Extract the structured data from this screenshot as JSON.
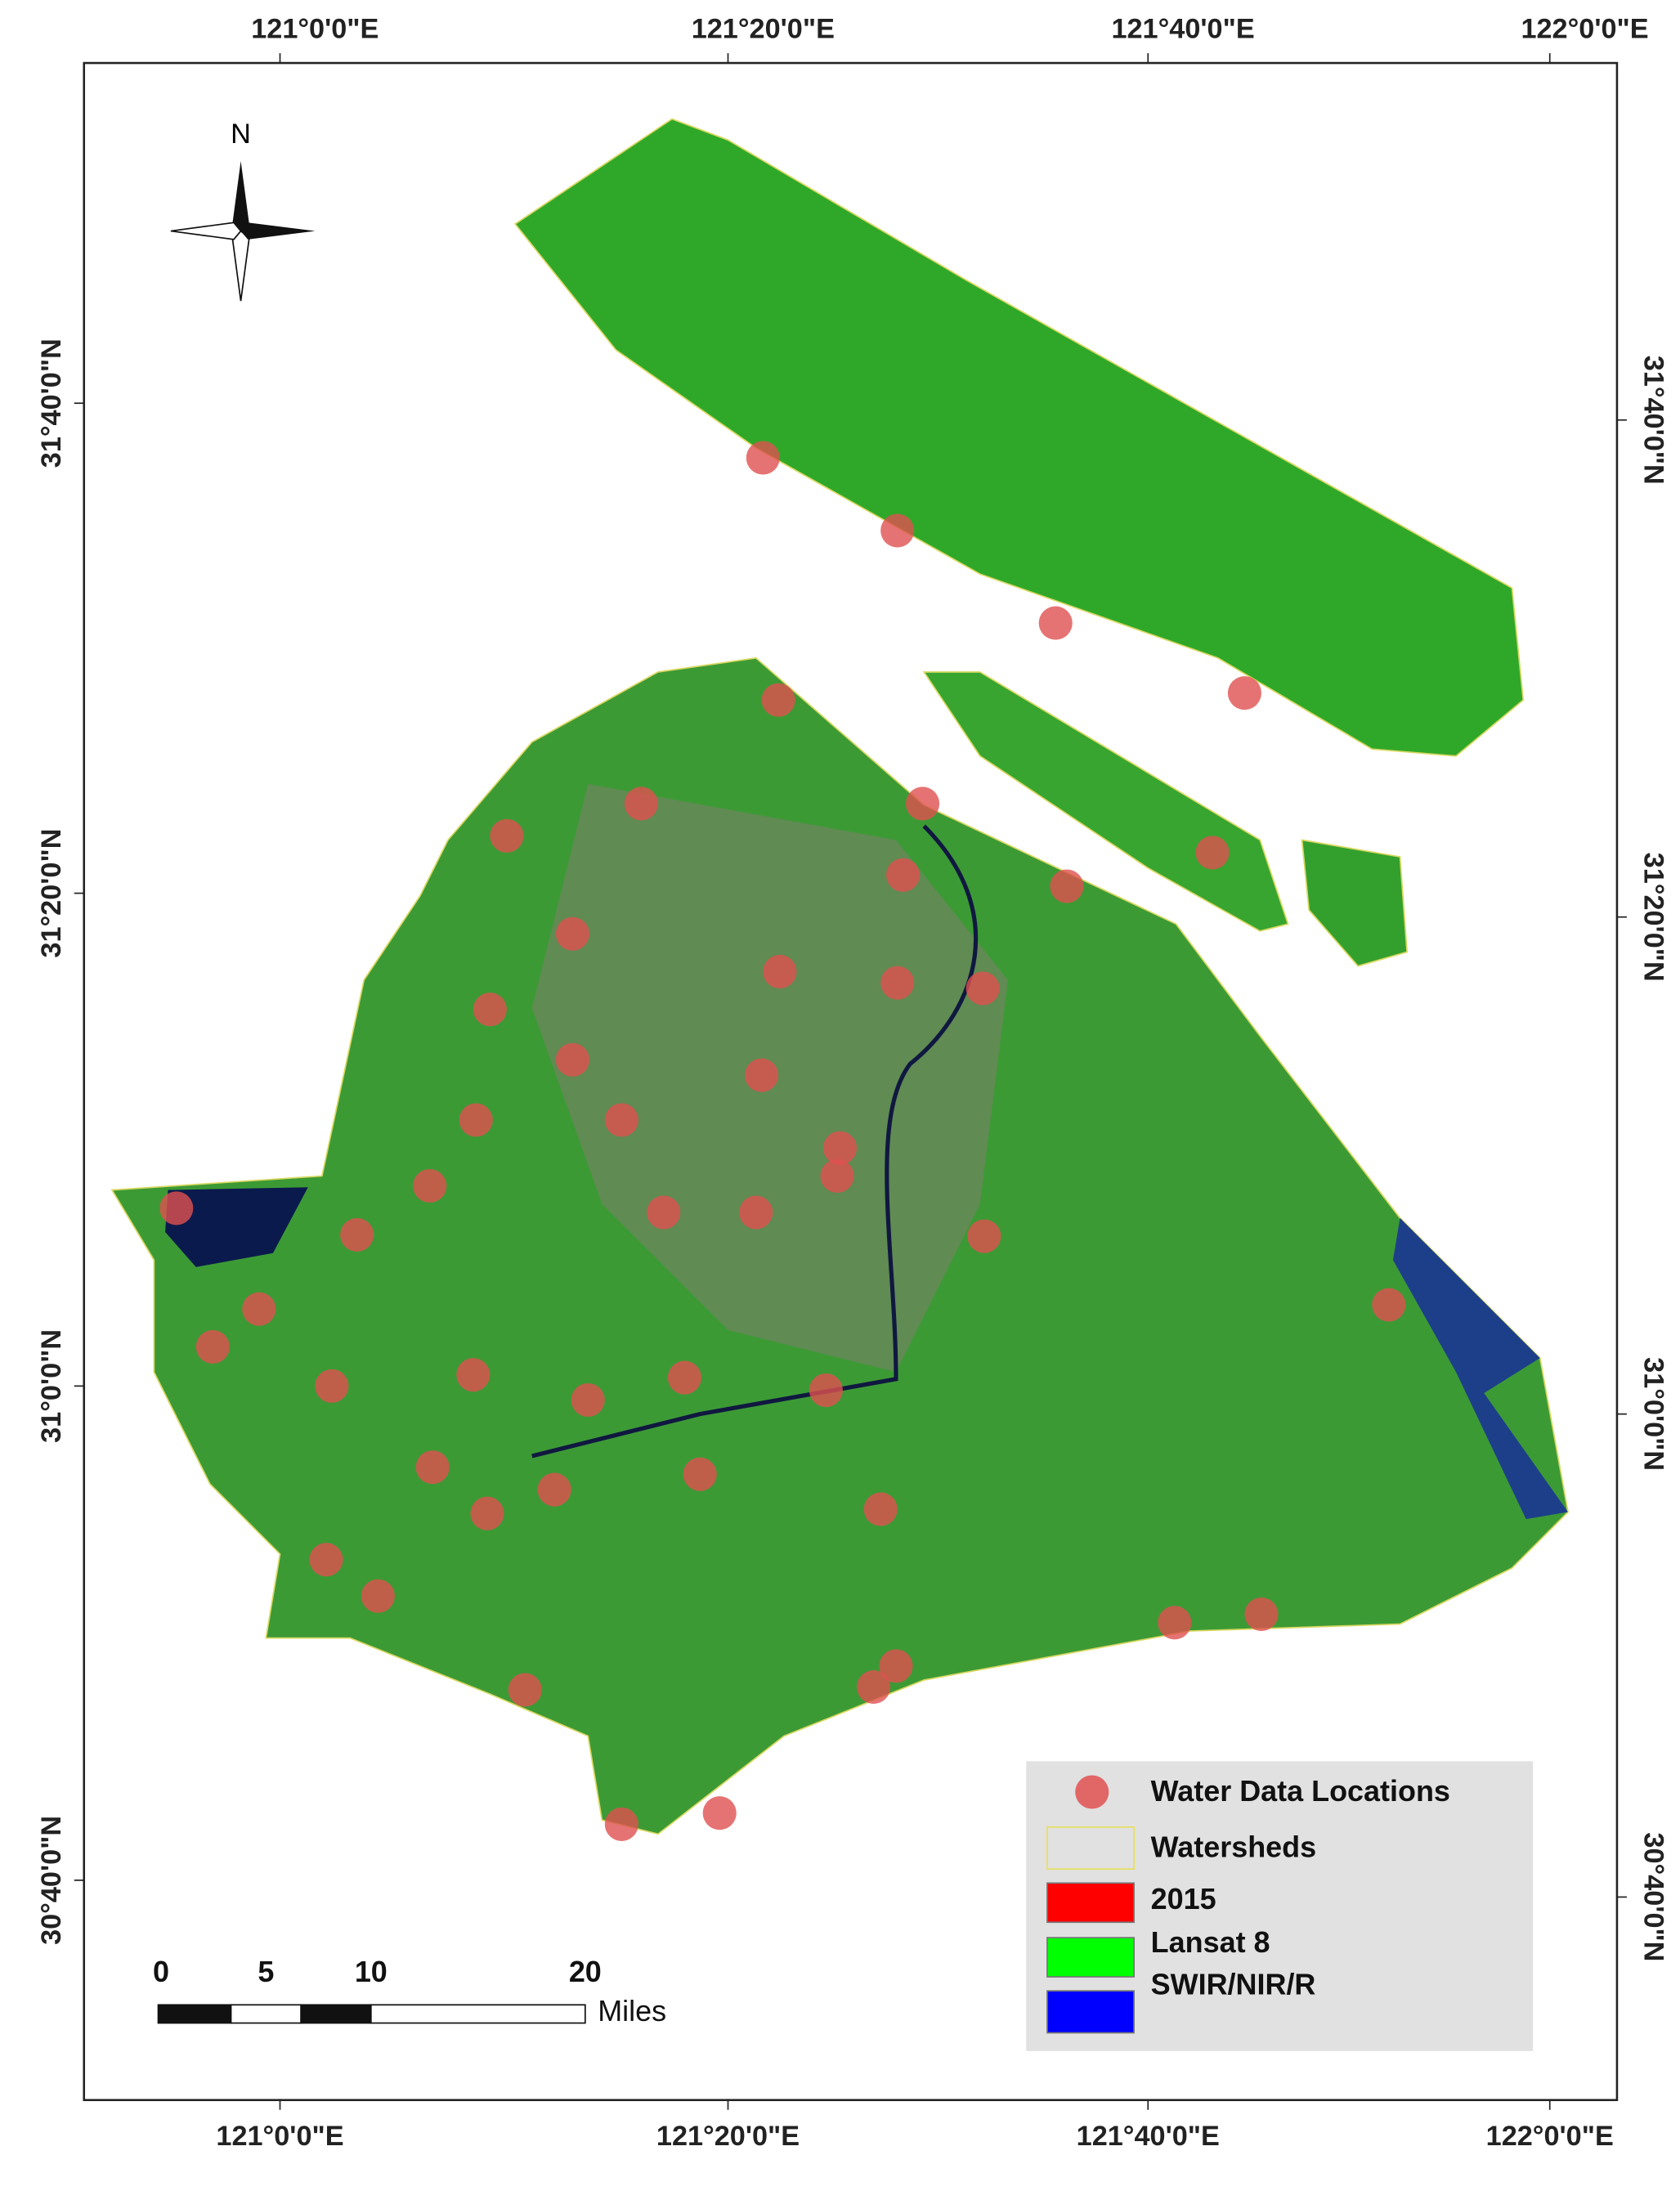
{
  "map": {
    "north_label": "N",
    "top_labels": [
      "121°0'0\"E",
      "121°20'0\"E",
      "121°40'0\"E",
      "122°0'0\"E"
    ],
    "bottom_labels": [
      "121°0'0\"E",
      "121°20'0\"E",
      "121°40'0\"E",
      "122°0'0\"E"
    ],
    "left_labels": [
      "31°40'0\"N",
      "31°20'0\"N",
      "31°0'0\"N",
      "30°40'0\"N"
    ],
    "right_labels": [
      "31°40'0\"N",
      "31°20'0\"N",
      "31°0'0\"N",
      "30°40'0\"N"
    ],
    "scale_bar": {
      "labels": [
        "0",
        "5",
        "10",
        "20"
      ],
      "unit": "Miles"
    },
    "legend": {
      "items": [
        "Water Data Locations",
        "Watersheds",
        "2015",
        "Lansat 8",
        "SWIR/NIR/R"
      ]
    }
  }
}
